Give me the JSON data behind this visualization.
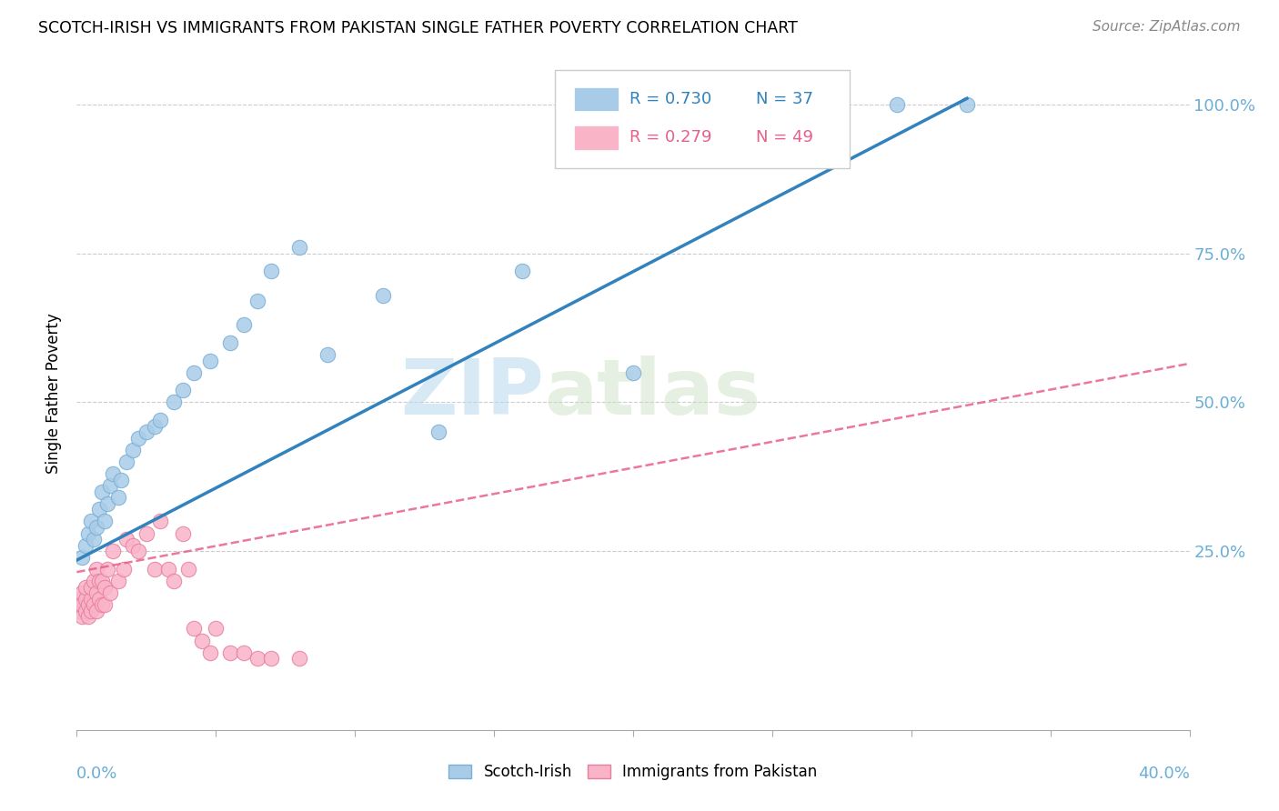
{
  "title": "SCOTCH-IRISH VS IMMIGRANTS FROM PAKISTAN SINGLE FATHER POVERTY CORRELATION CHART",
  "source": "Source: ZipAtlas.com",
  "ylabel": "Single Father Poverty",
  "ytick_labels": [
    "25.0%",
    "50.0%",
    "75.0%",
    "100.0%"
  ],
  "ytick_values": [
    0.25,
    0.5,
    0.75,
    1.0
  ],
  "xmin": 0.0,
  "xmax": 0.4,
  "ymin": -0.05,
  "ymax": 1.08,
  "watermark_zip": "ZIP",
  "watermark_atlas": "atlas",
  "legend_r1": "R = 0.730",
  "legend_n1": "N = 37",
  "legend_r2": "R = 0.279",
  "legend_n2": "N = 49",
  "color_blue": "#a8cce8",
  "color_blue_edge": "#7bafd4",
  "color_blue_line": "#3182bd",
  "color_pink": "#f9b4c8",
  "color_pink_edge": "#e87fa0",
  "color_pink_line": "#e8608a",
  "color_axis_text": "#6baed6",
  "color_grid": "#cccccc",
  "si_line_x0": 0.0,
  "si_line_y0": 0.235,
  "si_line_x1": 0.32,
  "si_line_y1": 1.01,
  "pk_line_x0": 0.0,
  "pk_line_y0": 0.215,
  "pk_line_x1": 0.4,
  "pk_line_y1": 0.565,
  "scotch_irish_x": [
    0.002,
    0.003,
    0.004,
    0.005,
    0.006,
    0.007,
    0.008,
    0.009,
    0.01,
    0.011,
    0.012,
    0.013,
    0.015,
    0.016,
    0.018,
    0.02,
    0.022,
    0.025,
    0.028,
    0.03,
    0.035,
    0.038,
    0.042,
    0.048,
    0.055,
    0.06,
    0.065,
    0.07,
    0.08,
    0.09,
    0.11,
    0.13,
    0.16,
    0.2,
    0.23,
    0.295,
    0.32
  ],
  "scotch_irish_y": [
    0.24,
    0.26,
    0.28,
    0.3,
    0.27,
    0.29,
    0.32,
    0.35,
    0.3,
    0.33,
    0.36,
    0.38,
    0.34,
    0.37,
    0.4,
    0.42,
    0.44,
    0.45,
    0.46,
    0.47,
    0.5,
    0.52,
    0.55,
    0.57,
    0.6,
    0.63,
    0.67,
    0.72,
    0.76,
    0.58,
    0.68,
    0.45,
    0.72,
    0.55,
    1.0,
    1.0,
    1.0
  ],
  "pakistan_x": [
    0.001,
    0.001,
    0.001,
    0.002,
    0.002,
    0.002,
    0.003,
    0.003,
    0.003,
    0.004,
    0.004,
    0.005,
    0.005,
    0.005,
    0.006,
    0.006,
    0.007,
    0.007,
    0.007,
    0.008,
    0.008,
    0.009,
    0.009,
    0.01,
    0.01,
    0.011,
    0.012,
    0.013,
    0.015,
    0.017,
    0.018,
    0.02,
    0.022,
    0.025,
    0.028,
    0.03,
    0.033,
    0.035,
    0.038,
    0.04,
    0.042,
    0.045,
    0.048,
    0.05,
    0.055,
    0.06,
    0.065,
    0.07,
    0.08
  ],
  "pakistan_y": [
    0.15,
    0.16,
    0.17,
    0.14,
    0.16,
    0.18,
    0.15,
    0.17,
    0.19,
    0.14,
    0.16,
    0.15,
    0.17,
    0.19,
    0.16,
    0.2,
    0.15,
    0.18,
    0.22,
    0.17,
    0.2,
    0.16,
    0.2,
    0.16,
    0.19,
    0.22,
    0.18,
    0.25,
    0.2,
    0.22,
    0.27,
    0.26,
    0.25,
    0.28,
    0.22,
    0.3,
    0.22,
    0.2,
    0.28,
    0.22,
    0.12,
    0.1,
    0.08,
    0.12,
    0.08,
    0.08,
    0.07,
    0.07,
    0.07
  ]
}
